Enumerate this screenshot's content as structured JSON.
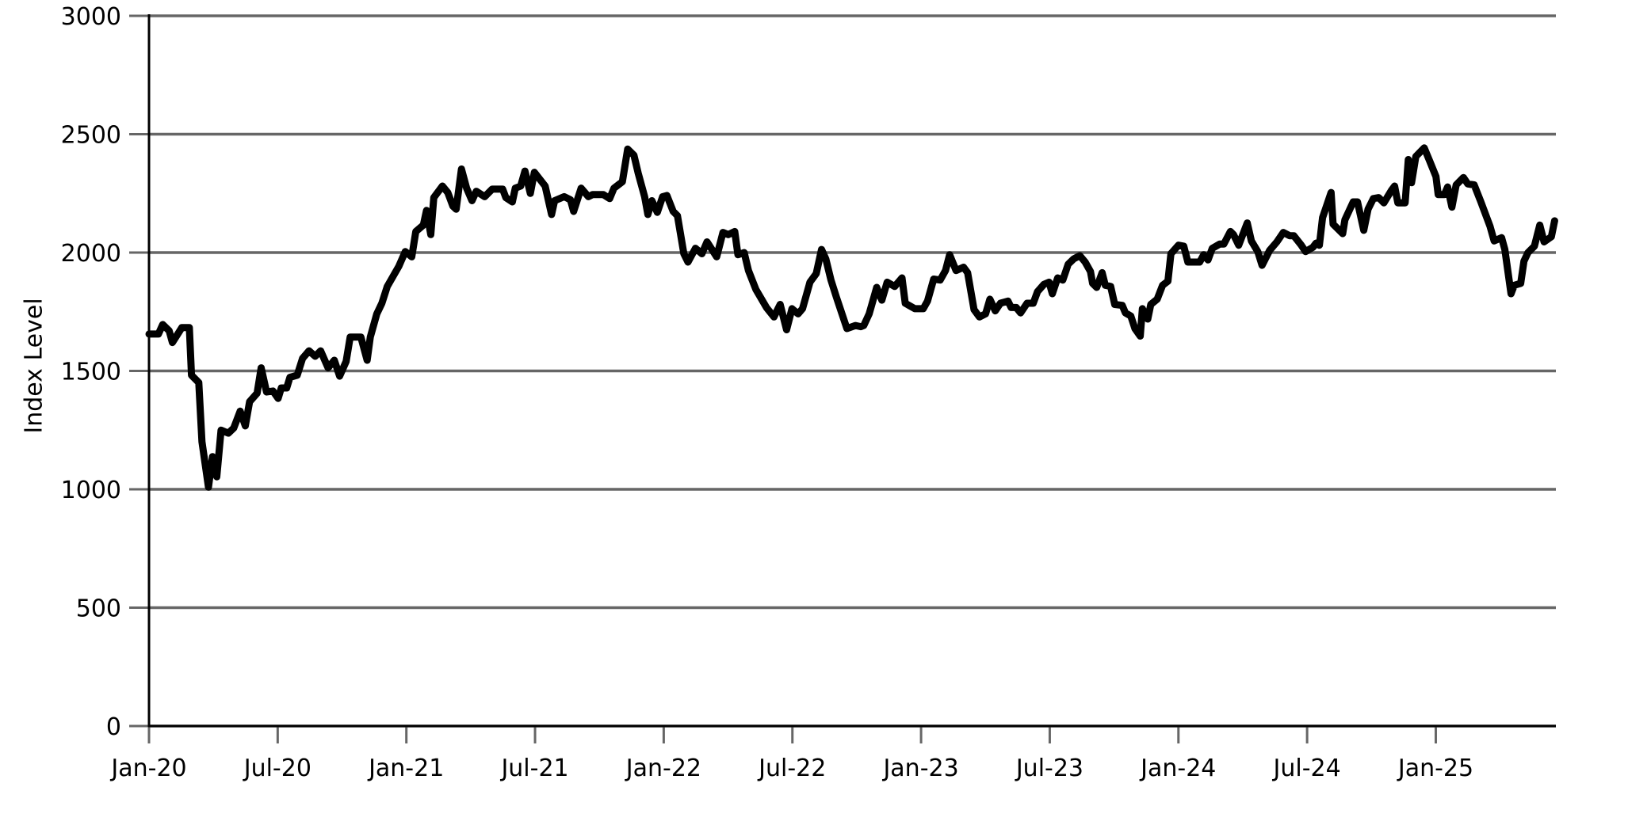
{
  "chart_data": {
    "type": "line",
    "y_label": "Index Level",
    "color": "#000000",
    "grid": true,
    "xlim": [
      0,
      65.6
    ],
    "xticks": [
      {
        "value": 0,
        "label": "Jan-20"
      },
      {
        "value": 6,
        "label": "Jul-20"
      },
      {
        "value": 12,
        "label": "Jan-21"
      },
      {
        "value": 18,
        "label": "Jul-21"
      },
      {
        "value": 24,
        "label": "Jan-22"
      },
      {
        "value": 30,
        "label": "Jul-22"
      },
      {
        "value": 36,
        "label": "Jan-23"
      },
      {
        "value": 42,
        "label": "Jul-23"
      },
      {
        "value": 48,
        "label": "Jan-24"
      },
      {
        "value": 54,
        "label": "Jul-24"
      },
      {
        "value": 60,
        "label": "Jan-25"
      }
    ],
    "ylim": [
      0,
      3000
    ],
    "yticks": [
      0,
      500,
      1000,
      1500,
      2000,
      2500,
      3000
    ],
    "x": [
      0,
      0.44,
      0.64,
      0.94,
      1.09,
      1.53,
      1.88,
      1.98,
      2.32,
      2.47,
      2.77,
      2.96,
      3.16,
      3.36,
      3.7,
      3.95,
      4.25,
      4.49,
      4.69,
      5.04,
      5.23,
      5.48,
      5.78,
      6.02,
      6.17,
      6.42,
      6.57,
      6.91,
      7.16,
      7.46,
      7.75,
      8.0,
      8.35,
      8.64,
      8.89,
      9.19,
      9.38,
      9.88,
      10.17,
      10.32,
      10.62,
      10.86,
      11.11,
      11.65,
      11.95,
      12.25,
      12.44,
      12.79,
      12.94,
      13.14,
      13.28,
      13.68,
      13.93,
      14.17,
      14.32,
      14.57,
      14.81,
      15.06,
      15.26,
      15.65,
      16.0,
      16.49,
      16.64,
      16.94,
      17.08,
      17.33,
      17.53,
      17.78,
      17.97,
      18.47,
      18.77,
      18.91,
      19.36,
      19.65,
      19.8,
      20.15,
      20.49,
      20.69,
      21.18,
      21.48,
      21.68,
      22.07,
      22.32,
      22.61,
      22.81,
      23.11,
      23.26,
      23.45,
      23.7,
      23.95,
      24.15,
      24.44,
      24.64,
      24.94,
      25.13,
      25.48,
      25.78,
      26.02,
      26.47,
      26.76,
      27.01,
      27.31,
      27.46,
      27.75,
      27.95,
      28.3,
      28.79,
      29.14,
      29.33,
      29.43,
      29.73,
      29.98,
      30.27,
      30.47,
      30.82,
      31.11,
      31.36,
      31.56,
      31.8,
      32.05,
      32.54,
      32.94,
      33.19,
      33.33,
      33.58,
      33.93,
      34.17,
      34.42,
      34.77,
      35.11,
      35.26,
      35.71,
      36.1,
      36.3,
      36.59,
      36.89,
      37.14,
      37.33,
      37.63,
      37.98,
      38.17,
      38.47,
      38.72,
      39.01,
      39.21,
      39.46,
      39.7,
      40.05,
      40.2,
      40.44,
      40.64,
      40.94,
      41.23,
      41.43,
      41.73,
      41.97,
      42.12,
      42.37,
      42.61,
      42.86,
      43.11,
      43.4,
      43.65,
      43.9,
      44.0,
      44.19,
      44.44,
      44.59,
      44.84,
      45.03,
      45.38,
      45.53,
      45.78,
      45.97,
      46.22,
      46.32,
      46.57,
      46.71,
      47.01,
      47.26,
      47.51,
      47.65,
      48.0,
      48.25,
      48.44,
      48.99,
      49.18,
      49.38,
      49.58,
      49.93,
      50.12,
      50.42,
      50.57,
      50.81,
      51.21,
      51.4,
      51.7,
      51.9,
      52.25,
      52.59,
      52.89,
      53.19,
      53.38,
      53.73,
      53.93,
      54.27,
      54.42,
      54.57,
      54.72,
      55.12,
      55.21,
      55.66,
      55.76,
      56.15,
      56.35,
      56.64,
      56.84,
      57.09,
      57.34,
      57.58,
      57.93,
      58.08,
      58.23,
      58.57,
      58.72,
      58.87,
      59.07,
      59.46,
      59.71,
      60.01,
      60.11,
      60.4,
      60.55,
      60.75,
      60.95,
      61.29,
      61.49,
      61.79,
      62.08,
      62.53,
      62.72,
      63.07,
      63.22,
      63.51,
      63.66,
      63.96,
      64.11,
      64.3,
      64.6,
      64.85,
      65.05,
      65.39,
      65.54
    ],
    "values": [
      1656,
      1656,
      1696,
      1670,
      1620,
      1683,
      1683,
      1482,
      1451,
      1201,
      1009,
      1138,
      1053,
      1250,
      1237,
      1259,
      1330,
      1268,
      1370,
      1406,
      1513,
      1411,
      1415,
      1384,
      1428,
      1428,
      1473,
      1482,
      1553,
      1585,
      1562,
      1585,
      1513,
      1545,
      1478,
      1540,
      1643,
      1643,
      1545,
      1643,
      1741,
      1786,
      1857,
      1942,
      2004,
      1982,
      2089,
      2116,
      2178,
      2076,
      2232,
      2281,
      2254,
      2196,
      2183,
      2353,
      2272,
      2219,
      2259,
      2236,
      2268,
      2268,
      2232,
      2214,
      2272,
      2281,
      2344,
      2250,
      2339,
      2281,
      2161,
      2219,
      2236,
      2223,
      2174,
      2272,
      2236,
      2245,
      2245,
      2228,
      2272,
      2299,
      2437,
      2411,
      2335,
      2236,
      2161,
      2219,
      2170,
      2236,
      2241,
      2174,
      2156,
      1995,
      1960,
      2018,
      1995,
      2045,
      1982,
      2085,
      2076,
      2089,
      1991,
      2000,
      1924,
      1844,
      1768,
      1728,
      1763,
      1781,
      1674,
      1763,
      1741,
      1763,
      1875,
      1911,
      2013,
      1973,
      1884,
      1812,
      1679,
      1692,
      1687,
      1692,
      1741,
      1853,
      1799,
      1875,
      1857,
      1893,
      1786,
      1763,
      1763,
      1795,
      1888,
      1884,
      1924,
      1991,
      1924,
      1938,
      1915,
      1759,
      1728,
      1741,
      1803,
      1754,
      1786,
      1795,
      1768,
      1768,
      1745,
      1786,
      1786,
      1835,
      1866,
      1875,
      1826,
      1893,
      1884,
      1951,
      1973,
      1987,
      1960,
      1920,
      1870,
      1853,
      1915,
      1862,
      1857,
      1781,
      1777,
      1745,
      1732,
      1679,
      1647,
      1763,
      1719,
      1781,
      1803,
      1862,
      1879,
      1995,
      2031,
      2027,
      1960,
      1960,
      1991,
      1969,
      2018,
      2036,
      2036,
      2089,
      2076,
      2031,
      2125,
      2049,
      2004,
      1946,
      2009,
      2045,
      2085,
      2071,
      2071,
      2031,
      2004,
      2022,
      2040,
      2031,
      2147,
      2254,
      2120,
      2080,
      2138,
      2214,
      2214,
      2094,
      2183,
      2228,
      2232,
      2210,
      2263,
      2281,
      2210,
      2210,
      2393,
      2295,
      2406,
      2442,
      2388,
      2321,
      2245,
      2245,
      2277,
      2192,
      2286,
      2317,
      2290,
      2286,
      2219,
      2111,
      2049,
      2063,
      2013,
      1826,
      1862,
      1870,
      1964,
      2000,
      2027,
      2116,
      2045,
      2067,
      2134
    ]
  }
}
